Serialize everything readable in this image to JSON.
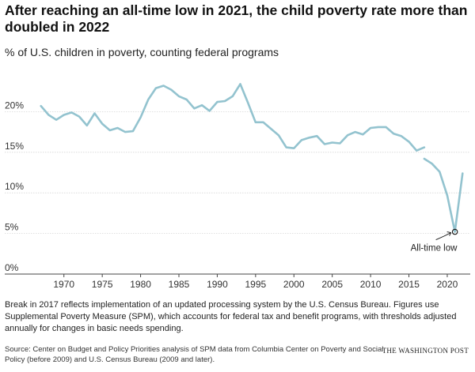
{
  "chart_data": {
    "type": "line",
    "title": "After reaching an all-time low in 2021, the child poverty rate more than doubled in 2022",
    "subtitle": "% of U.S. children in poverty, counting federal programs",
    "xlabel": "",
    "ylabel": "",
    "xlim": [
      1966,
      2023
    ],
    "ylim": [
      0,
      25
    ],
    "x_ticks": [
      1970,
      1975,
      1980,
      1985,
      1990,
      1995,
      2000,
      2005,
      2010,
      2015,
      2020
    ],
    "y_ticks": [
      {
        "value": 0,
        "label": "0%"
      },
      {
        "value": 5,
        "label": "5%"
      },
      {
        "value": 10,
        "label": "10%"
      },
      {
        "value": 15,
        "label": "15%"
      },
      {
        "value": 20,
        "label": "20%"
      }
    ],
    "grid": "horizontal",
    "line_color": "#93c3cf",
    "segments": [
      {
        "x": [
          1967,
          1968,
          1969,
          1970,
          1971,
          1972,
          1973,
          1974,
          1975,
          1976,
          1977,
          1978,
          1979,
          1980,
          1981,
          1982,
          1983,
          1984,
          1985,
          1986,
          1987,
          1988,
          1989,
          1990,
          1991,
          1992,
          1993,
          1994,
          1995,
          1996,
          1997,
          1998,
          1999,
          2000,
          2001,
          2002,
          2003,
          2004,
          2005,
          2006,
          2007,
          2008,
          2009,
          2010,
          2011,
          2012,
          2013,
          2014,
          2015,
          2016,
          2017
        ],
        "y": [
          20.7,
          19.6,
          19.0,
          19.6,
          19.9,
          19.4,
          18.3,
          19.8,
          18.5,
          17.7,
          18.0,
          17.5,
          17.6,
          19.3,
          21.5,
          22.9,
          23.2,
          22.7,
          21.9,
          21.5,
          20.4,
          20.8,
          20.1,
          21.2,
          21.3,
          21.9,
          23.4,
          21.1,
          18.7,
          18.7,
          17.9,
          17.1,
          15.6,
          15.5,
          16.5,
          16.8,
          17.0,
          16.0,
          16.2,
          16.1,
          17.1,
          17.5,
          17.2,
          18.0,
          18.1,
          18.1,
          17.3,
          17.0,
          16.3,
          15.2,
          15.6
        ]
      },
      {
        "x": [
          2017,
          2018,
          2019,
          2020,
          2021,
          2022
        ],
        "y": [
          14.2,
          13.6,
          12.6,
          9.7,
          5.2,
          12.4
        ]
      }
    ],
    "annotations": [
      {
        "label": "All-time low",
        "x": 2021,
        "y": 5.2
      }
    ]
  },
  "footer": {
    "note": "Break in 2017 reflects implementation of an updated processing system by the U.S. Census Bureau. Figures use Supplemental Poverty Measure (SPM), which accounts for federal tax and benefit programs, with thresholds adjusted annually for changes in basic needs spending.",
    "source": "Source: Center on Budget and Policy Priorities analysis of SPM data from Columbia Center on Poverty and Social Policy (before 2009) and U.S. Census Bureau (2009 and later).",
    "brand": "THE WASHINGTON POST"
  }
}
